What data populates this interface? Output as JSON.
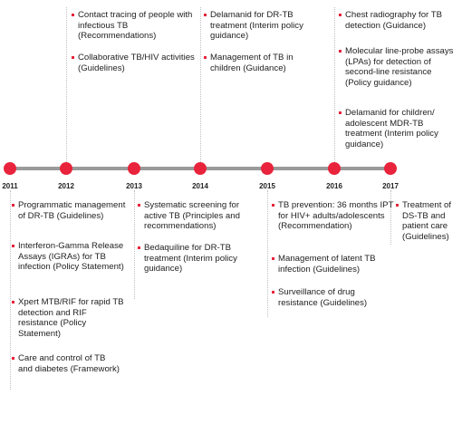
{
  "colors": {
    "dot": "#e8233b",
    "axis": "#9a9a9a",
    "bullet": "#e8233b",
    "text": "#222222"
  },
  "years": [
    "2011",
    "2012",
    "2013",
    "2014",
    "2015",
    "2016",
    "2017"
  ],
  "top": {
    "2012": [
      "Contact tracing of people with infectious TB (Recommendations)",
      "Collaborative TB/HIV activities (Guidelines)"
    ],
    "2014": [
      "Delamanid for DR-TB treatment (Interim policy guidance)",
      "Management of TB in children (Guidance)"
    ],
    "2016": [
      "Chest radiography for TB detection (Guidance)",
      "Molecular line-probe assays (LPAs) for detection of second-line resistance (Policy guidance)",
      "Delamanid for children/ adolescent MDR-TB treatment (Interim policy guidance)"
    ]
  },
  "bottom": {
    "2011": [
      "Programmatic management of DR-TB (Guidelines)",
      "Interferon-Gamma Release Assays (IGRAs) for TB infection (Policy Statement)",
      "Xpert MTB/RIF for rapid TB detection and RIF resistance (Policy Statement)",
      "Care and control of TB and diabetes (Framework)"
    ],
    "2013": [
      "Systematic screening for active TB (Principles and recommendations)",
      "Bedaquiline for DR-TB treatment (Interim policy guidance)"
    ],
    "2015": [
      "TB prevention: 36 months IPT for HIV+ adults/adolescents (Recommendation)",
      "Management of latent TB infection (Guidelines)",
      "Surveillance of drug resistance (Guidelines)"
    ],
    "2017": [
      "Treatment of DS-TB and patient care (Guidelines)"
    ]
  }
}
